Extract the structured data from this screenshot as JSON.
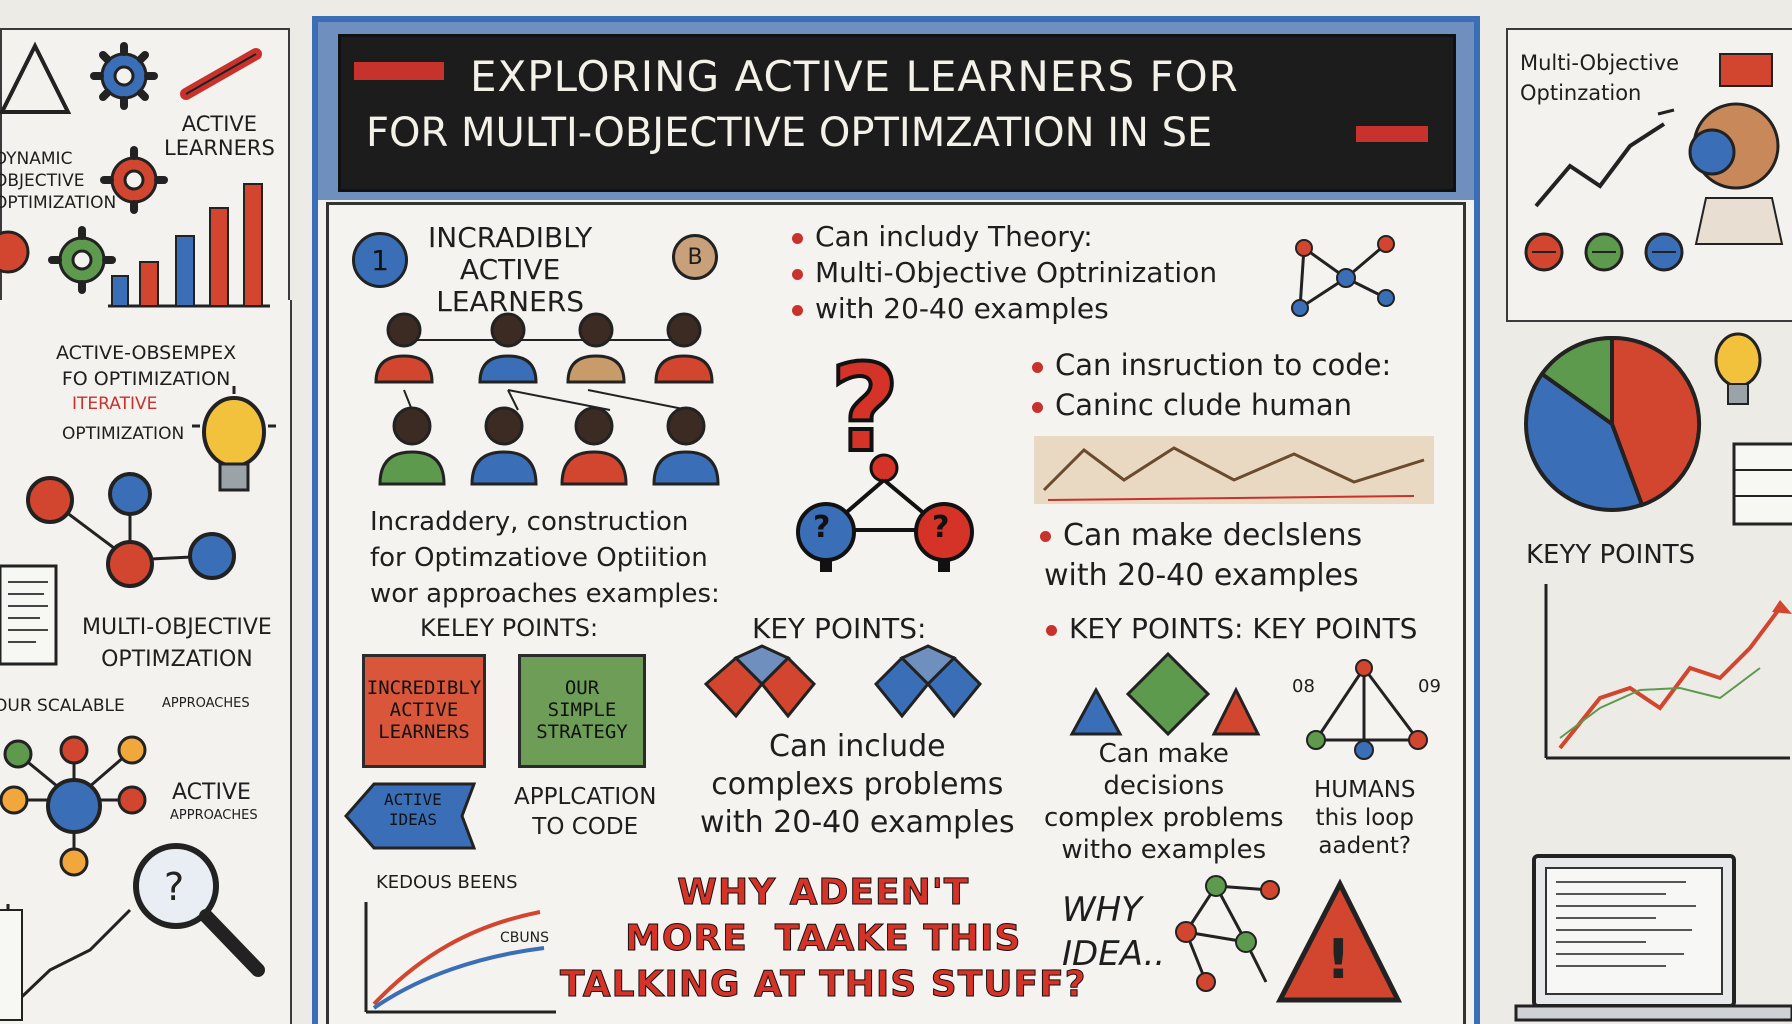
{
  "title": {
    "line1": "EXPLORING ACTIVE LEARNERS FOR",
    "line2": "FOR MULTI-OBJECTIVE OPTIMZATION IN SE"
  },
  "left_panel": {
    "active_learners": "ACTIVE\nLEARNERS",
    "objective": "DYNAMIC\nOBJECTIVE\nOPTIMIZATION",
    "active_obs": "ACTIVE-OBSEMPEX\nFO OPTIMIZATION",
    "iterative": "ITERATIVE",
    "optimization": "OPTIMIZATION",
    "multi": "MULTI-OBJECTIVE\nOPTIMZATION",
    "our_scale": "OUR SCALABLE",
    "approaches": "APPROACHES",
    "active_bottom": "ACTIVE",
    "active_sub": "APPROACHES"
  },
  "center": {
    "step_number": "1",
    "heading": "INCRADIBLY\nACTIVE\nLEARNERS",
    "badge": "B",
    "desc": "Incraddery, construction\nfor Optimzatiove Optiition\nwor approaches examples:",
    "bullets": [
      "Can includy  Theory:",
      "Multi-Objective Optrinization",
      "with  20-40 examples"
    ],
    "bullets2": [
      "Can insruction to code:",
      "Caninc clude human"
    ],
    "bullet3": "Can make declslens",
    "bullet3_sub": "with 20-40 examples",
    "key_points_left": "KELEY POINTS:",
    "key_points_mid": "KEY POINTS:",
    "key_points_right": "KEY POINTS: KEY POINTS",
    "box_red": "INCREDIBLY\nACTIVE\nLEARNERS",
    "box_green": "OUR\nSIMPLE\nSTRATEGY",
    "arrow_label": "ACTIVE\nIDEAS",
    "application": "APPLCATION\nTO CODE",
    "can_include": "Can include\ncomplexs problems\nwith 20-40 examples",
    "can_make": "Can make\ndecisions\ncomplex problems\nwitho examples",
    "human": "HUMANS\nthis loop\naadent?",
    "node_q_left": "?",
    "node_q_right": "?",
    "kedous": "KEDOUS BEENS",
    "chart_label": "CBUNS",
    "why_big": "WHY ADEEN'T\nMORE  TAAKE THIS\nTALKING AT THIS STUFF?",
    "why_small": "WHY\nIDEA..",
    "num_08": "08",
    "num_09": "09"
  },
  "right_panel": {
    "multi": "Multi-Objective\nOptinzation",
    "key_points": "KEYY  POINTS"
  },
  "colors": {
    "red": "#d53327",
    "blue": "#3a6fb8",
    "green": "#5e9a4e",
    "dark": "#1e1e1e",
    "banner": "#1c1c1c",
    "frame": "#3a6fb8"
  }
}
